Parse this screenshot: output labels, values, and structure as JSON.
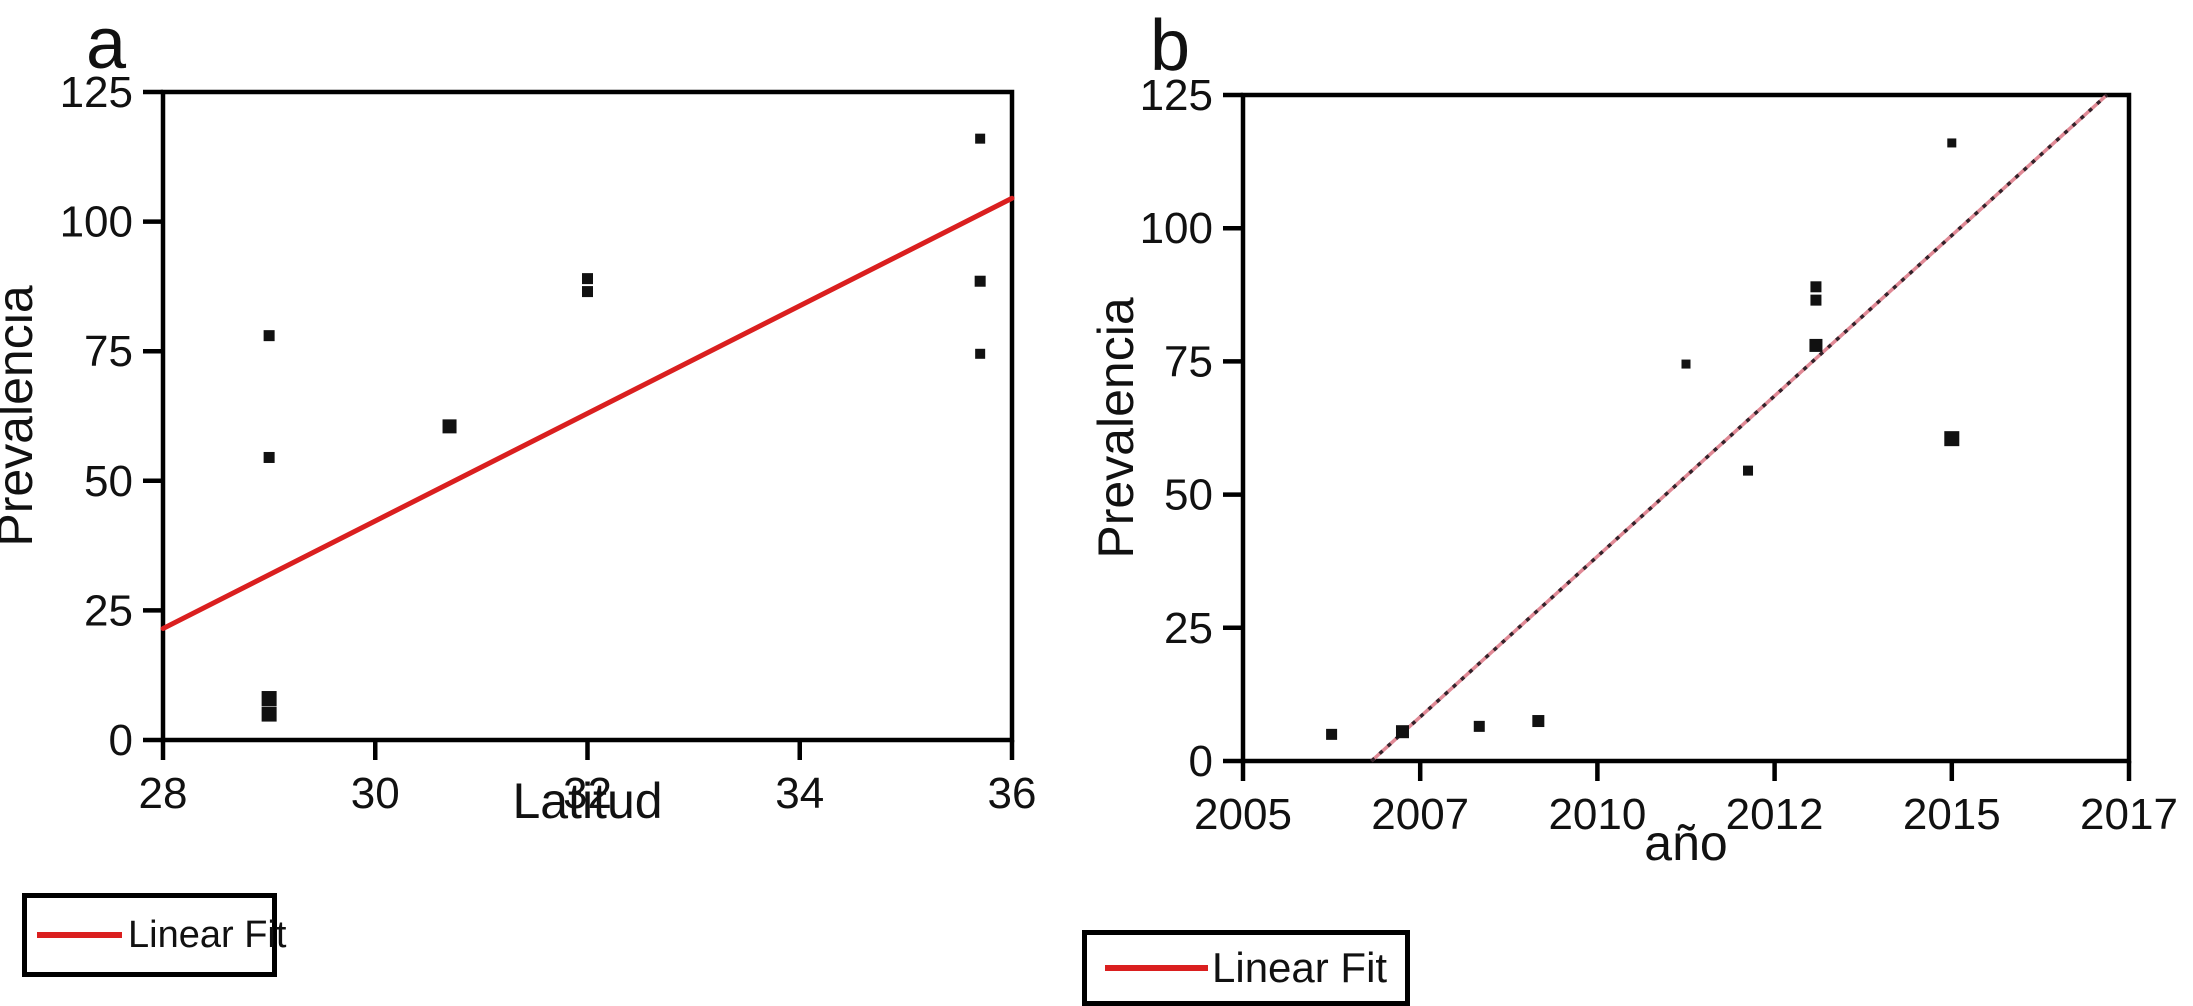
{
  "figure": {
    "background": "#ffffff",
    "frame_color": "#000000",
    "marker_color": "#111111",
    "fit_red": "#da1f1f",
    "fit_b_pink": "#e08a96",
    "fit_b_dark": "#35222a"
  },
  "legend_a": {
    "label": "Linear Fit",
    "line_color": "#da1f1f"
  },
  "legend_b": {
    "label": "Linear Fit",
    "line_color": "#da1f1f"
  },
  "chart_data": [
    {
      "id": "panel-a",
      "panel_label": "a",
      "type": "scatter",
      "title": "",
      "xlabel": "Latitud",
      "ylabel": "Prevalencia",
      "xlim": [
        28,
        36
      ],
      "ylim": [
        0,
        125
      ],
      "x_ticks": [
        28,
        30,
        32,
        34,
        36
      ],
      "x_tick_labels": [
        "28",
        "30",
        "32",
        "34",
        "36"
      ],
      "y_ticks": [
        0,
        25,
        50,
        75,
        100,
        125
      ],
      "grid": false,
      "legend_position": "below-left",
      "points": [
        {
          "x": 29,
          "y": 78,
          "s": 11
        },
        {
          "x": 29,
          "y": 54.5,
          "s": 11
        },
        {
          "x": 29,
          "y": 8,
          "s": 15
        },
        {
          "x": 29,
          "y": 5,
          "s": 15
        },
        {
          "x": 30.7,
          "y": 60.5,
          "s": 14
        },
        {
          "x": 32,
          "y": 89,
          "s": 11
        },
        {
          "x": 32,
          "y": 86.5,
          "s": 11
        },
        {
          "x": 35.7,
          "y": 116,
          "s": 10
        },
        {
          "x": 35.7,
          "y": 88.5,
          "s": 11
        },
        {
          "x": 35.7,
          "y": 74.5,
          "s": 10
        }
      ],
      "fit_line": {
        "label": "Linear Fit",
        "x1": 28,
        "y1": 21.5,
        "x2": 36,
        "y2": 104.5,
        "style": "solid-red"
      }
    },
    {
      "id": "panel-b",
      "panel_label": "b",
      "type": "scatter",
      "title": "",
      "xlabel": "año",
      "ylabel": "Prevalencia",
      "xlim": [
        2005,
        2017
      ],
      "ylim": [
        0,
        125
      ],
      "x_ticks": [
        2005,
        2007,
        2010,
        2012,
        2015,
        2017
      ],
      "x_tick_labels": [
        "2005",
        "2007",
        "2010",
        "2012",
        "2015",
        "2017"
      ],
      "y_ticks": [
        0,
        25,
        50,
        75,
        100,
        125
      ],
      "grid": false,
      "legend_position": "below-center",
      "points": [
        {
          "x": 2006,
          "y": 5,
          "s": 11
        },
        {
          "x": 2006.8,
          "y": 5.5,
          "s": 13
        },
        {
          "x": 2008,
          "y": 6.5,
          "s": 11
        },
        {
          "x": 2009,
          "y": 7.5,
          "s": 12
        },
        {
          "x": 2011,
          "y": 74.5,
          "s": 9
        },
        {
          "x": 2011.7,
          "y": 54.5,
          "s": 10
        },
        {
          "x": 2012.7,
          "y": 89,
          "s": 11
        },
        {
          "x": 2012.7,
          "y": 86.5,
          "s": 11
        },
        {
          "x": 2012.7,
          "y": 78,
          "s": 13
        },
        {
          "x": 2015,
          "y": 116,
          "s": 9
        },
        {
          "x": 2015,
          "y": 60.5,
          "s": 15
        }
      ],
      "fit_line": {
        "label": "Linear Fit",
        "x1": 2006.45,
        "y1": 0,
        "x2": 2016.75,
        "y2": 125,
        "style": "dotted-dark-over-pink"
      }
    }
  ]
}
